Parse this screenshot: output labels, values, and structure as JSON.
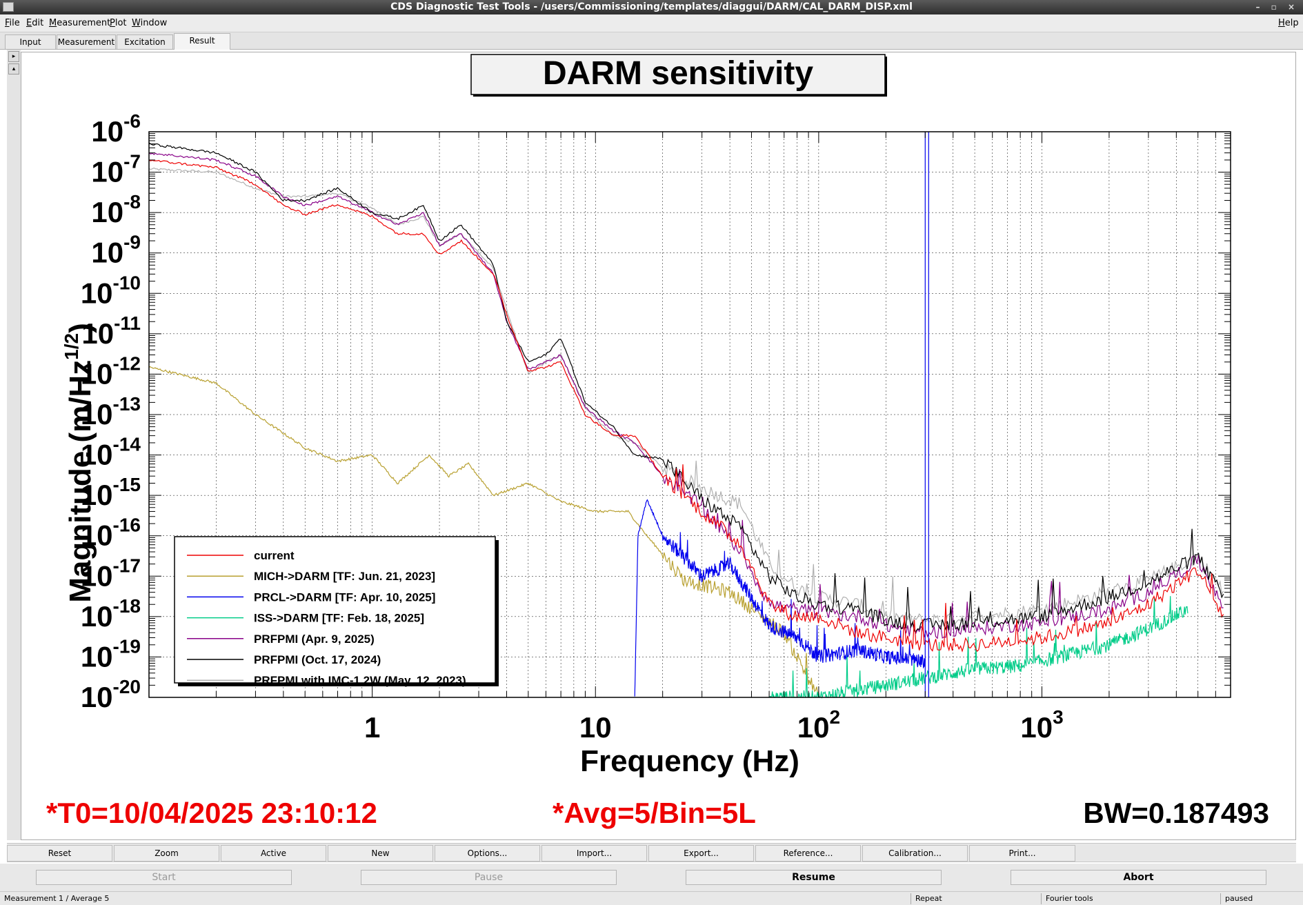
{
  "window": {
    "title": "CDS Diagnostic Test Tools - /users/Commissioning/templates/diaggui/DARM/CAL_DARM_DISP.xml",
    "controls": "– ▫ ×"
  },
  "menu": {
    "file": "File",
    "edit": "Edit",
    "measurement": "Measurement",
    "plot": "Plot",
    "window": "Window",
    "help": "Help"
  },
  "tabs": {
    "input": "Input",
    "measurement": "Measurement",
    "excitation": "Excitation",
    "result": "Result"
  },
  "plot": {
    "title": "DARM sensitivity",
    "t0": "*T0=10/04/2025 23:10:12",
    "avg": "*Avg=5/Bin=5L",
    "bw": "BW=0.187493"
  },
  "chart_data": {
    "type": "line",
    "title": "DARM sensitivity",
    "xlabel": "Frequency (Hz)",
    "ylabel": "Magnitude (m/Hz^(1/2))",
    "xscale": "log",
    "yscale": "log",
    "xlim": [
      0.1,
      7000
    ],
    "ylim": [
      1e-20,
      1e-06
    ],
    "x_tick_labels": [
      "1",
      "10",
      "10^2",
      "10^3"
    ],
    "y_tick_labels": [
      "10^-6",
      "10^-7",
      "10^-8",
      "10^-9",
      "10^-10",
      "10^-11",
      "10^-12",
      "10^-13",
      "10^-14",
      "10^-15",
      "10^-16",
      "10^-17",
      "10^-18",
      "10^-19",
      "10^-20"
    ],
    "grid": true,
    "legend_position": "bottom-left",
    "series": [
      {
        "name": "current",
        "color": "#ee0000",
        "points": [
          [
            0.1,
            2e-07
          ],
          [
            0.2,
            1.3e-07
          ],
          [
            0.3,
            5e-08
          ],
          [
            0.4,
            1.5e-08
          ],
          [
            0.5,
            9e-09
          ],
          [
            0.7,
            1.6e-08
          ],
          [
            1,
            8e-09
          ],
          [
            1.3,
            3e-09
          ],
          [
            1.7,
            3e-09
          ],
          [
            2,
            9e-10
          ],
          [
            2.5,
            2e-09
          ],
          [
            3.5,
            3e-10
          ],
          [
            4,
            3e-11
          ],
          [
            5,
            1.2e-12
          ],
          [
            6,
            1.5e-12
          ],
          [
            7,
            2e-12
          ],
          [
            9,
            1e-13
          ],
          [
            12,
            3e-14
          ],
          [
            15,
            3e-14
          ],
          [
            20,
            3e-15
          ],
          [
            30,
            4e-16
          ],
          [
            45,
            6e-17
          ],
          [
            60,
            2e-18
          ],
          [
            80,
            1e-18
          ],
          [
            100,
            1e-18
          ],
          [
            150,
            4e-19
          ],
          [
            200,
            3e-19
          ],
          [
            300,
            2e-19
          ],
          [
            500,
            2e-19
          ],
          [
            1000,
            3e-19
          ],
          [
            2000,
            7e-19
          ],
          [
            3000,
            2e-18
          ],
          [
            5000,
            1.5e-17
          ],
          [
            6500,
            1e-18
          ]
        ]
      },
      {
        "name": "MICH->DARM [TF: Jun. 21, 2023]",
        "color": "#b8a030",
        "points": [
          [
            0.1,
            1.5e-12
          ],
          [
            0.2,
            6e-13
          ],
          [
            0.3,
            1e-13
          ],
          [
            0.5,
            1.5e-14
          ],
          [
            0.7,
            7e-15
          ],
          [
            1,
            1e-14
          ],
          [
            1.3,
            2e-15
          ],
          [
            1.8,
            1e-14
          ],
          [
            2.2,
            3e-15
          ],
          [
            2.7,
            6e-15
          ],
          [
            3.5,
            1e-15
          ],
          [
            5,
            2e-15
          ],
          [
            7,
            7e-16
          ],
          [
            10,
            4e-16
          ],
          [
            14,
            4e-16
          ],
          [
            17,
            1e-16
          ],
          [
            25,
            8e-18
          ],
          [
            40,
            4e-18
          ],
          [
            70,
            4e-19
          ],
          [
            100,
            1e-20
          ]
        ]
      },
      {
        "name": "PRCL->DARM [TF: Apr. 10, 2025]",
        "color": "#0000ee",
        "points": [
          [
            15,
            1e-20
          ],
          [
            15.5,
            1e-16
          ],
          [
            17,
            8e-16
          ],
          [
            20,
            1e-16
          ],
          [
            30,
            1e-17
          ],
          [
            40,
            2e-17
          ],
          [
            60,
            6e-19
          ],
          [
            80,
            3e-19
          ],
          [
            100,
            1e-19
          ],
          [
            150,
            1.5e-19
          ],
          [
            200,
            1e-19
          ],
          [
            300,
            8e-20
          ]
        ]
      },
      {
        "name": "ISS->DARM [TF: Feb. 18, 2025]",
        "color": "#00cc88",
        "points": [
          [
            60,
            1e-20
          ],
          [
            100,
            1e-20
          ],
          [
            200,
            2e-20
          ],
          [
            300,
            3e-20
          ],
          [
            500,
            5e-20
          ],
          [
            800,
            6e-20
          ],
          [
            1200,
            1e-19
          ],
          [
            2000,
            2e-19
          ],
          [
            3000,
            5e-19
          ],
          [
            4500,
            1.5e-18
          ]
        ]
      },
      {
        "name": "PRFPMI (Apr. 9, 2025)",
        "color": "#880088",
        "points": [
          [
            0.1,
            3e-07
          ],
          [
            0.2,
            2e-07
          ],
          [
            0.3,
            8e-08
          ],
          [
            0.4,
            2.5e-08
          ],
          [
            0.5,
            1.5e-08
          ],
          [
            0.7,
            2.5e-08
          ],
          [
            1,
            1e-08
          ],
          [
            1.3,
            5e-09
          ],
          [
            1.7,
            1e-08
          ],
          [
            2,
            1.5e-09
          ],
          [
            2.5,
            3e-09
          ],
          [
            3.5,
            3e-10
          ],
          [
            4,
            2e-11
          ],
          [
            5,
            1.3e-12
          ],
          [
            6,
            2e-12
          ],
          [
            7,
            3e-12
          ],
          [
            9,
            1.5e-13
          ],
          [
            12,
            4e-14
          ],
          [
            15,
            2e-14
          ],
          [
            20,
            3e-15
          ],
          [
            30,
            5e-16
          ],
          [
            45,
            4e-17
          ],
          [
            60,
            2e-18
          ],
          [
            80,
            1.5e-18
          ],
          [
            100,
            1.3e-18
          ],
          [
            150,
            1e-18
          ],
          [
            200,
            6e-19
          ],
          [
            300,
            4e-19
          ],
          [
            500,
            5e-19
          ],
          [
            1000,
            7e-19
          ],
          [
            2000,
            1.5e-18
          ],
          [
            3000,
            4e-18
          ],
          [
            5000,
            2.5e-17
          ],
          [
            6500,
            2e-18
          ]
        ]
      },
      {
        "name": "PRFPMI (Oct. 17, 2024)",
        "color": "#000000",
        "points": [
          [
            0.1,
            5e-07
          ],
          [
            0.2,
            3e-07
          ],
          [
            0.3,
            1e-07
          ],
          [
            0.4,
            2e-08
          ],
          [
            0.5,
            2e-08
          ],
          [
            0.7,
            4e-08
          ],
          [
            1,
            1e-08
          ],
          [
            1.3,
            7e-09
          ],
          [
            1.7,
            1.5e-08
          ],
          [
            2,
            2e-09
          ],
          [
            2.5,
            5e-09
          ],
          [
            3.5,
            5e-10
          ],
          [
            4,
            2e-11
          ],
          [
            5,
            2e-12
          ],
          [
            6,
            3e-12
          ],
          [
            7,
            8e-12
          ],
          [
            9,
            2e-13
          ],
          [
            12,
            5e-14
          ],
          [
            15,
            1e-14
          ],
          [
            20,
            8e-15
          ],
          [
            30,
            8e-16
          ],
          [
            45,
            1.5e-16
          ],
          [
            60,
            1e-17
          ],
          [
            80,
            3e-18
          ],
          [
            100,
            2e-18
          ],
          [
            150,
            1.5e-18
          ],
          [
            200,
            8e-19
          ],
          [
            300,
            6e-19
          ],
          [
            500,
            7e-19
          ],
          [
            1000,
            1e-18
          ],
          [
            2000,
            3e-18
          ],
          [
            3000,
            7e-18
          ],
          [
            5000,
            3e-17
          ],
          [
            6500,
            3e-18
          ]
        ]
      },
      {
        "name": "PRFPMI with IMC-1.2W (May. 12, 2023)",
        "color": "#b0b0b0",
        "points": [
          [
            0.1,
            1.2e-07
          ],
          [
            0.2,
            1e-07
          ],
          [
            0.3,
            4e-08
          ],
          [
            0.4,
            2.5e-08
          ],
          [
            0.5,
            2.5e-08
          ],
          [
            0.7,
            3e-08
          ],
          [
            1,
            1.3e-08
          ],
          [
            1.3,
            5e-09
          ],
          [
            1.7,
            8e-09
          ],
          [
            2,
            1.5e-09
          ],
          [
            2.5,
            3e-09
          ],
          [
            3.5,
            4e-10
          ],
          [
            4,
            4e-11
          ],
          [
            5,
            1e-12
          ],
          [
            6,
            2e-12
          ],
          [
            7,
            3e-12
          ],
          [
            9,
            1.5e-13
          ],
          [
            12,
            3e-14
          ],
          [
            15,
            2e-14
          ],
          [
            20,
            5e-15
          ],
          [
            30,
            1.5e-15
          ],
          [
            45,
            6e-16
          ],
          [
            60,
            2e-17
          ],
          [
            80,
            5e-18
          ],
          [
            100,
            3e-18
          ],
          [
            150,
            2e-18
          ],
          [
            200,
            1e-18
          ],
          [
            300,
            8e-19
          ],
          [
            500,
            1e-18
          ],
          [
            1000,
            1.5e-18
          ],
          [
            2000,
            4e-18
          ],
          [
            3000,
            8e-18
          ],
          [
            5000,
            3e-17
          ],
          [
            6500,
            4e-18
          ]
        ]
      }
    ],
    "annotations": [
      {
        "type": "vertical_line",
        "x": 300,
        "color": "#0000ee"
      }
    ]
  },
  "buttons": {
    "reset": "Reset",
    "zoom": "Zoom",
    "active": "Active",
    "new": "New",
    "options": "Options...",
    "import": "Import...",
    "export": "Export...",
    "reference": "Reference...",
    "calibration": "Calibration...",
    "print": "Print..."
  },
  "controls": {
    "start": "Start",
    "pause": "Pause",
    "resume": "Resume",
    "abort": "Abort"
  },
  "status": {
    "left": "Measurement 1 / Average 5",
    "repeat": "Repeat",
    "fourier": "Fourier tools",
    "state": "paused"
  }
}
